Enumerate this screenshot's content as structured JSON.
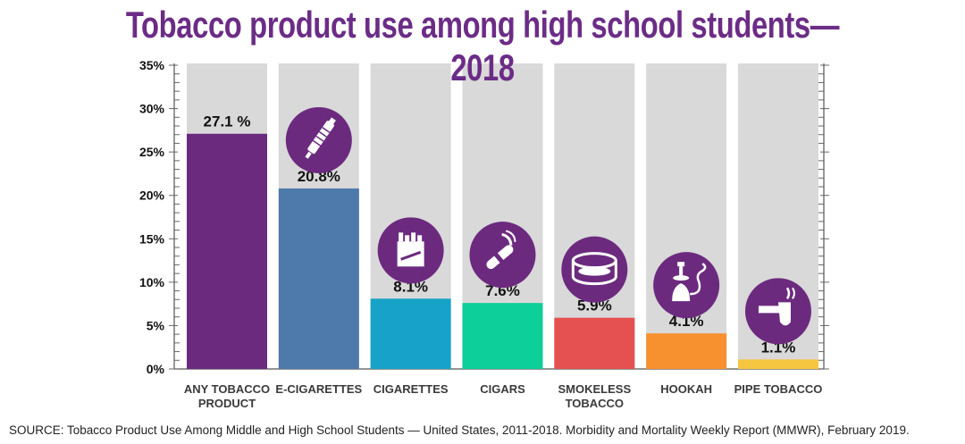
{
  "title": "Tobacco product use among high school students—2018",
  "source": "SOURCE: Tobacco Product Use Among Middle and High School Students — United States, 2011-2018. Morbidity and Mortality Weekly Report (MMWR), February 2019.",
  "chart_data": {
    "type": "bar",
    "ylim": [
      0,
      35
    ],
    "y_ticks": [
      "0%",
      "5%",
      "10%",
      "15%",
      "20%",
      "25%",
      "30%",
      "35%"
    ],
    "y_tick_values": [
      0,
      5,
      10,
      15,
      20,
      25,
      30,
      35
    ],
    "grid": false,
    "categories": [
      [
        "ANY TOBACCO",
        "PRODUCT"
      ],
      [
        "E-CIGARETTES"
      ],
      [
        "CIGARETTES"
      ],
      [
        "CIGARS"
      ],
      [
        "SMOKELESS",
        "TOBACCO"
      ],
      [
        "HOOKAH"
      ],
      [
        "PIPE TOBACCO"
      ]
    ],
    "values": [
      27.1,
      20.8,
      8.1,
      7.6,
      5.9,
      4.1,
      1.1
    ],
    "value_labels": [
      "27.1 %",
      "20.8%",
      "8.1%",
      "7.6%",
      "5.9%",
      "4.1%",
      "1.1%"
    ],
    "colors": [
      "#6c2a7f",
      "#4e7aab",
      "#17a3c9",
      "#0ccf9a",
      "#e45150",
      "#f7902f",
      "#f7c640"
    ],
    "icons": [
      null,
      "e-cigarette-icon",
      "cigarette-pack-icon",
      "cigar-icon",
      "smokeless-tobacco-tin-icon",
      "hookah-icon",
      "pipe-icon"
    ],
    "icon_color": "#6c2a7f",
    "background_column_color": "#d9d9d9"
  }
}
